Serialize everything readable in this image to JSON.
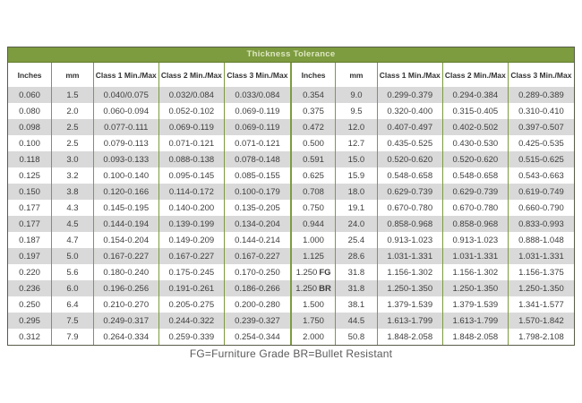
{
  "banner": {
    "title": "Thickness Tolerance"
  },
  "footer": {
    "note": "FG=Furniture Grade BR=Bullet Resistant"
  },
  "colors": {
    "header_green": "#7d9b3f",
    "banner_text": "#dde8c2",
    "row_stripe_gray": "#d9d9d9",
    "border_dark": "#585c49",
    "body_text": "#3d3d3d"
  },
  "tables": [
    {
      "side": "left",
      "columns": [
        "Inches",
        "mm",
        "Class 1 Min./Max",
        "Class 2 Min./Max",
        "Class 3 Min./Max"
      ],
      "rows": [
        [
          "0.060",
          "1.5",
          "0.040/0.075",
          "0.032/0.084",
          "0.033/0.084"
        ],
        [
          "0.080",
          "2.0",
          "0.060-0.094",
          "0.052-0.102",
          "0.069-0.119"
        ],
        [
          "0.098",
          "2.5",
          "0.077-0.111",
          "0.069-0.119",
          "0.069-0.119"
        ],
        [
          "0.100",
          "2.5",
          "0.079-0.113",
          "0.071-0.121",
          "0.071-0.121"
        ],
        [
          "0.118",
          "3.0",
          "0.093-0.133",
          "0.088-0.138",
          "0.078-0.148"
        ],
        [
          "0.125",
          "3.2",
          "0.100-0.140",
          "0.095-0.145",
          "0.085-0.155"
        ],
        [
          "0.150",
          "3.8",
          "0.120-0.166",
          "0.114-0.172",
          "0.100-0.179"
        ],
        [
          "0.177",
          "4.3",
          "0.145-0.195",
          "0.140-0.200",
          "0.135-0.205"
        ],
        [
          "0.177",
          "4.5",
          "0.144-0.194",
          "0.139-0.199",
          "0.134-0.204"
        ],
        [
          "0.187",
          "4.7",
          "0.154-0.204",
          "0.149-0.209",
          "0.144-0.214"
        ],
        [
          "0.197",
          "5.0",
          "0.167-0.227",
          "0.167-0.227",
          "0.167-0.227"
        ],
        [
          "0.220",
          "5.6",
          "0.180-0.240",
          "0.175-0.245",
          "0.170-0.250"
        ],
        [
          "0.236",
          "6.0",
          "0.196-0.256",
          "0.191-0.261",
          "0.186-0.266"
        ],
        [
          "0.250",
          "6.4",
          "0.210-0.270",
          "0.205-0.275",
          "0.200-0.280"
        ],
        [
          "0.295",
          "7.5",
          "0.249-0.317",
          "0.244-0.322",
          "0.239-0.327"
        ],
        [
          "0.312",
          "7.9",
          "0.264-0.334",
          "0.259-0.339",
          "0.254-0.344"
        ]
      ]
    },
    {
      "side": "right",
      "columns": [
        "Inches",
        "mm",
        "Class 1 Min./Max",
        "Class 2 Min./Max",
        "Class 3 Min./Max"
      ],
      "rows": [
        [
          "0.354",
          "9.0",
          "0.299-0.379",
          "0.294-0.384",
          "0.289-0.389"
        ],
        [
          "0.375",
          "9.5",
          "0.320-0.400",
          "0.315-0.405",
          "0.310-0.410"
        ],
        [
          "0.472",
          "12.0",
          "0.407-0.497",
          "0.402-0.502",
          "0.397-0.507"
        ],
        [
          "0.500",
          "12.7",
          "0.435-0.525",
          "0.430-0.530",
          "0.425-0.535"
        ],
        [
          "0.591",
          "15.0",
          "0.520-0.620",
          "0.520-0.620",
          "0.515-0.625"
        ],
        [
          "0.625",
          "15.9",
          "0.548-0.658",
          "0.548-0.658",
          "0.543-0.663"
        ],
        [
          "0.708",
          "18.0",
          "0.629-0.739",
          "0.629-0.739",
          "0.619-0.749"
        ],
        [
          "0.750",
          "19.1",
          "0.670-0.780",
          "0.670-0.780",
          "0.660-0.790"
        ],
        [
          "0.944",
          "24.0",
          "0.858-0.968",
          "0.858-0.968",
          "0.833-0.993"
        ],
        [
          "1.000",
          "25.4",
          "0.913-1.023",
          "0.913-1.023",
          "0.888-1.048"
        ],
        [
          "1.125",
          "28.6",
          "1.031-1.331",
          "1.031-1.331",
          "1.031-1.331"
        ],
        [
          {
            "text": "1.250",
            "grade": "FG"
          },
          "31.8",
          "1.156-1.302",
          "1.156-1.302",
          "1.156-1.375"
        ],
        [
          {
            "text": "1.250",
            "grade": "BR"
          },
          "31.8",
          "1.250-1.350",
          "1.250-1.350",
          "1.250-1.350"
        ],
        [
          "1.500",
          "38.1",
          "1.379-1.539",
          "1.379-1.539",
          "1.341-1.577"
        ],
        [
          "1.750",
          "44.5",
          "1.613-1.799",
          "1.613-1.799",
          "1.570-1.842"
        ],
        [
          "2.000",
          "50.8",
          "1.848-2.058",
          "1.848-2.058",
          "1.798-2.108"
        ]
      ]
    }
  ]
}
